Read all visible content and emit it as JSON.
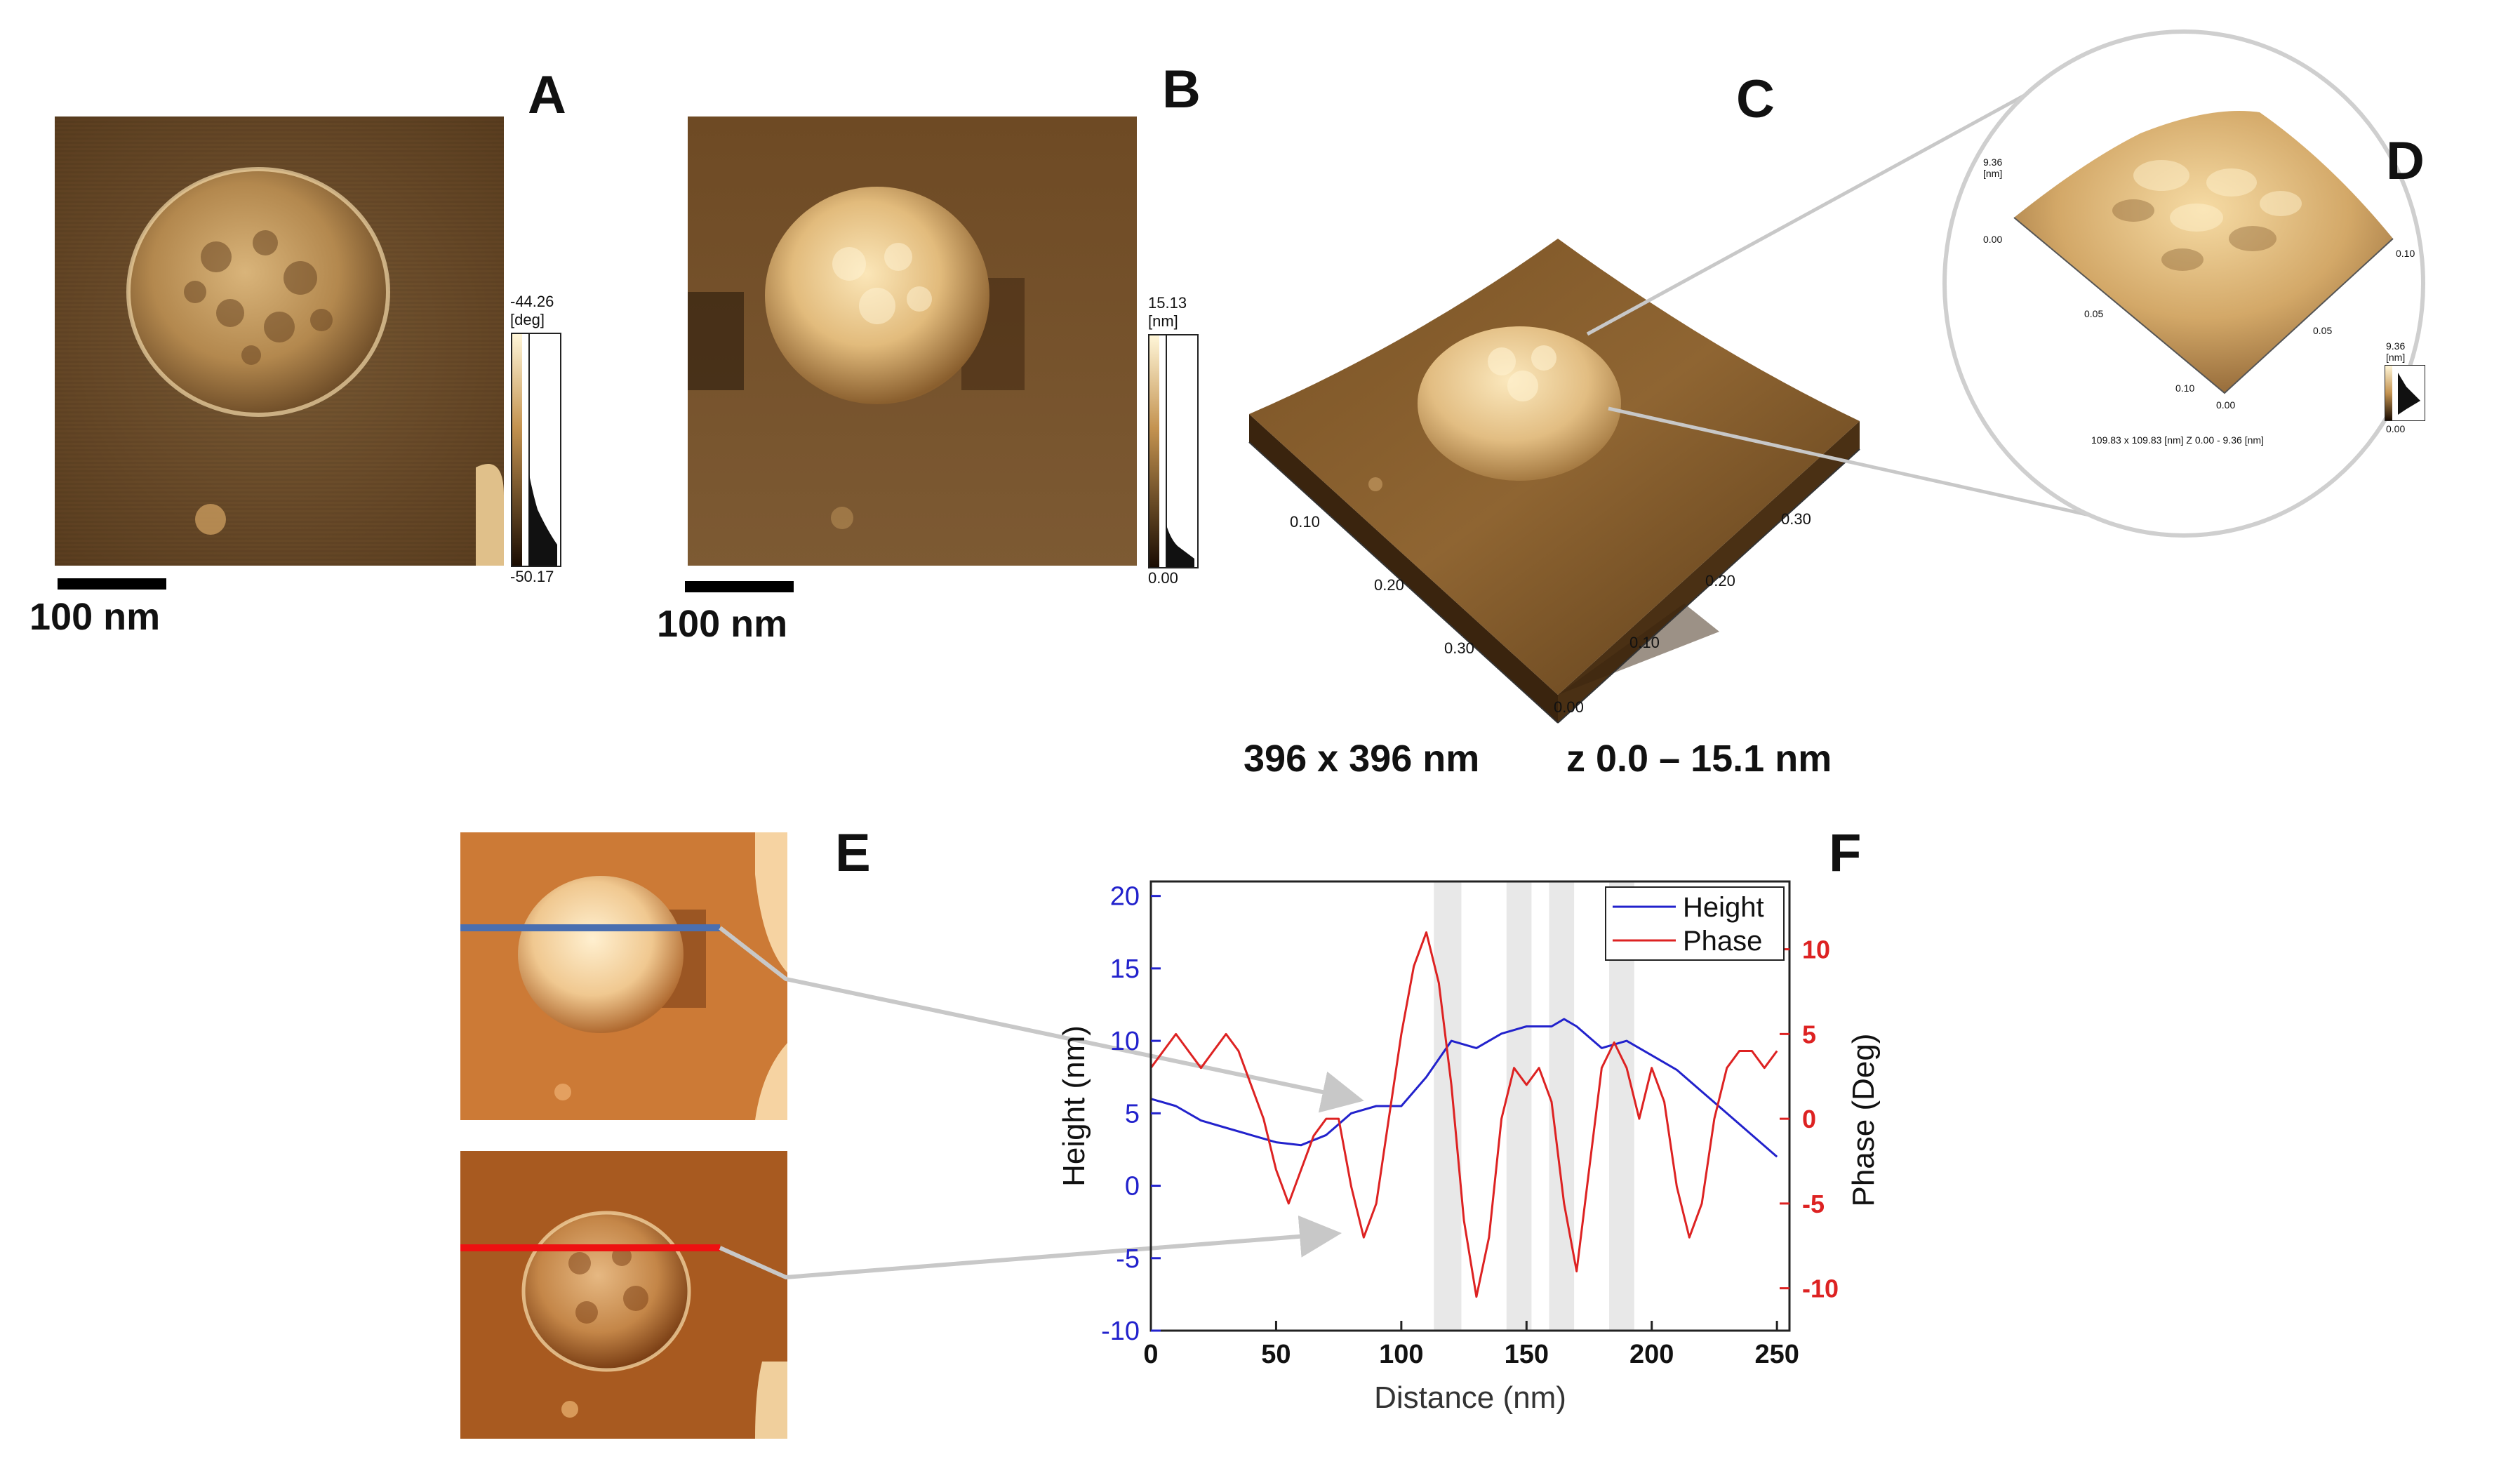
{
  "panels": {
    "A": {
      "letter": "A",
      "scale_bar": "100 nm",
      "colorbar": {
        "max_label": "-44.26",
        "unit_label": "[deg]",
        "min_label": "-50.17"
      }
    },
    "B": {
      "letter": "B",
      "scale_bar": "100 nm",
      "colorbar": {
        "max_label": "15.13",
        "unit_label": "[nm]",
        "min_label": "0.00"
      }
    },
    "C": {
      "letter": "C",
      "axis_left": [
        "0.10",
        "0.20",
        "0.30"
      ],
      "axis_right": [
        "0.10",
        "0.20",
        "0.30"
      ],
      "origin": "0.00",
      "caption_size": "396 x 396 nm",
      "caption_z": "z 0.0 – 15.1 nm"
    },
    "D": {
      "letter": "D",
      "z_label_top": "9.36",
      "z_unit": "[nm]",
      "z_label_bottom": "0.00",
      "axis_left": [
        "0.05",
        "0.10"
      ],
      "axis_right": [
        "0.05",
        "0.10"
      ],
      "origin": "0.00",
      "colorbar": {
        "max_label": "9.36",
        "unit_label": "[nm]",
        "min_label": "0.00"
      },
      "footer": "109.83 x 109.83 [nm]   Z  0.00  -  9.36 [nm]"
    },
    "E": {
      "letter": "E"
    },
    "F": {
      "letter": "F"
    }
  },
  "colors": {
    "height_line": "#2222cc",
    "phase_line": "#dd2222",
    "blue_scan_line": "#4a6fb0",
    "red_scan_line": "#ee1111",
    "shade": "#e8e8e8",
    "leader": "#c8c8c8"
  },
  "chart_data": {
    "type": "line",
    "xlabel": "Distance (nm)",
    "ylabel": "Height (nm)",
    "y2label": "Phase (Deg)",
    "xlim": [
      0,
      255
    ],
    "ylim": [
      -10,
      21
    ],
    "y2lim": [
      -12.5,
      14
    ],
    "xticks": [
      0,
      50,
      100,
      150,
      200,
      250
    ],
    "yticks": [
      -10,
      -5,
      0,
      5,
      10,
      15,
      20
    ],
    "y2ticks": [
      -10,
      -5,
      0,
      5,
      10
    ],
    "legend_position": "top-right",
    "shaded_bands": [
      [
        113,
        124
      ],
      [
        142,
        152
      ],
      [
        159,
        169
      ],
      [
        183,
        193
      ]
    ],
    "series": [
      {
        "name": "Height",
        "axis": "left",
        "x": [
          0,
          10,
          20,
          30,
          40,
          50,
          60,
          70,
          80,
          90,
          95,
          100,
          110,
          120,
          130,
          140,
          150,
          160,
          165,
          170,
          180,
          190,
          200,
          210,
          220,
          230,
          240,
          250
        ],
        "y": [
          6,
          5.5,
          4.5,
          4,
          3.5,
          3,
          2.8,
          3.5,
          5,
          5.5,
          5.5,
          5.5,
          7.5,
          10,
          9.5,
          10.5,
          11,
          11,
          11.5,
          11,
          9.5,
          10,
          9,
          8,
          6.5,
          5,
          3.5,
          2
        ]
      },
      {
        "name": "Phase",
        "axis": "right",
        "x": [
          0,
          5,
          10,
          15,
          20,
          25,
          30,
          35,
          40,
          45,
          50,
          55,
          60,
          65,
          70,
          75,
          80,
          85,
          90,
          95,
          100,
          105,
          110,
          115,
          120,
          125,
          130,
          135,
          140,
          145,
          150,
          155,
          160,
          165,
          170,
          175,
          180,
          185,
          190,
          195,
          200,
          205,
          210,
          215,
          220,
          225,
          230,
          235,
          240,
          245,
          250
        ],
        "y": [
          3,
          4,
          5,
          4,
          3,
          4,
          5,
          4,
          2,
          0,
          -3,
          -5,
          -3,
          -1,
          0,
          0,
          -4,
          -7,
          -5,
          0,
          5,
          9,
          11,
          8,
          2,
          -6,
          -10.5,
          -7,
          0,
          3,
          2,
          3,
          1,
          -5,
          -9,
          -3,
          3,
          4.5,
          3,
          0,
          3,
          1,
          -4,
          -7,
          -5,
          0,
          3,
          4,
          4,
          3,
          4
        ]
      }
    ]
  }
}
